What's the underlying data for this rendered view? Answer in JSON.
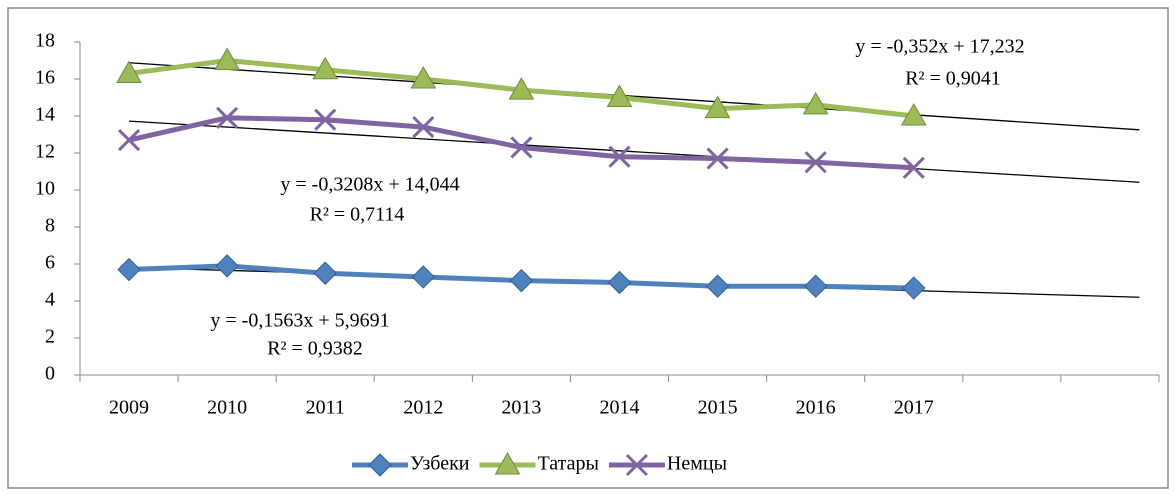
{
  "chart_data": {
    "type": "line",
    "categories": [
      "2009",
      "2010",
      "2011",
      "2012",
      "2013",
      "2014",
      "2015",
      "2016",
      "2017",
      null,
      null
    ],
    "series": [
      {
        "name": "Узбеки",
        "color": "#4f81bd",
        "marker": "diamond",
        "values": [
          5.7,
          5.9,
          5.5,
          5.3,
          5.1,
          5.0,
          4.8,
          4.8,
          4.7,
          null,
          null
        ],
        "trend": {
          "slope": -0.1563,
          "intercept": 5.9691,
          "equation": "y = -0,1563x + 5,9691",
          "r2": "R² = 0,9382"
        }
      },
      {
        "name": "Татары",
        "color": "#9bbb59",
        "marker": "triangle",
        "values": [
          16.3,
          17.0,
          16.5,
          16.0,
          15.4,
          15.0,
          14.4,
          14.6,
          14.0,
          null,
          null
        ],
        "trend": {
          "slope": -0.352,
          "intercept": 17.232,
          "equation": "y = -0,352x + 17,232",
          "r2": "R² = 0,9041"
        }
      },
      {
        "name": "Немцы",
        "color": "#8064a2",
        "marker": "x",
        "values": [
          12.7,
          13.9,
          13.8,
          13.4,
          12.3,
          11.8,
          11.7,
          11.5,
          11.2,
          null,
          null
        ],
        "trend": {
          "slope": -0.3208,
          "intercept": 14.044,
          "equation": "y = -0,3208x + 14,044",
          "r2": "R² = 0,7114"
        }
      }
    ],
    "ylim": [
      0,
      18
    ],
    "yticks": [
      0,
      2,
      4,
      6,
      8,
      10,
      12,
      14,
      16,
      18
    ],
    "grid": false,
    "legend": "bottom"
  }
}
